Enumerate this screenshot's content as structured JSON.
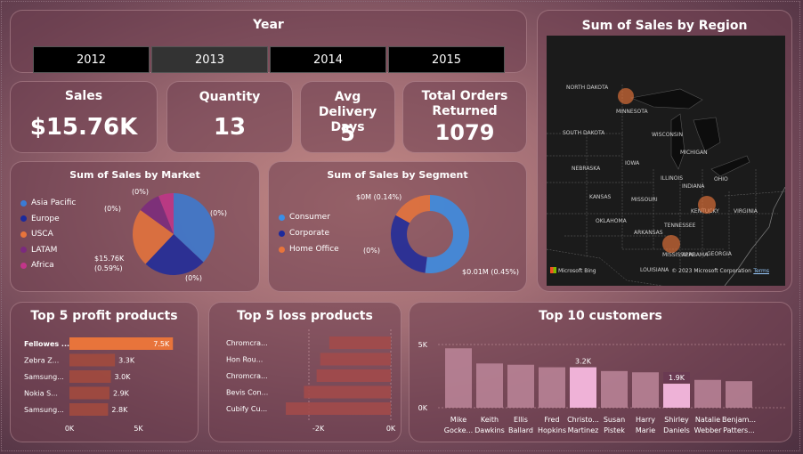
{
  "year_slicer": {
    "title": "Year",
    "options": [
      "2012",
      "2013",
      "2014",
      "2015"
    ],
    "selected": "2013"
  },
  "kpis": {
    "sales": {
      "label": "Sales",
      "value": "$15.76K"
    },
    "quantity": {
      "label": "Quantity",
      "value": "13"
    },
    "avg_delivery": {
      "label": "Avg Delivery Days",
      "value": "5"
    },
    "orders_returned": {
      "label": "Total Orders Returned",
      "value": "1079"
    }
  },
  "region_map": {
    "title": "Sum of Sales by Region",
    "states": [
      "NORTH DAKOTA",
      "MINNESOTA",
      "SOUTH DAKOTA",
      "WISCONSIN",
      "MICHIGAN",
      "NEBRASKA",
      "IOWA",
      "ILLINOIS",
      "INDIANA",
      "OHIO",
      "KANSAS",
      "MISSOURI",
      "KENTUCKY",
      "VIRGINIA",
      "OKLAHOMA",
      "ARKANSAS",
      "TENNESSEE",
      "MISSISSIPPI",
      "ALABAMA",
      "GEORGIA",
      "LOUISIANA"
    ],
    "credit_left": "Microsoft Bing",
    "credit_right": "© 2023 Microsoft Corporation",
    "credit_link": "Terms",
    "bubble_color": "#e8743b"
  },
  "market_pie": {
    "title": "Sum of Sales by Market",
    "legend": [
      {
        "name": "Asia Pacific",
        "color": "#3a7bd5"
      },
      {
        "name": "Europe",
        "color": "#1c2a9c"
      },
      {
        "name": "USCA",
        "color": "#e8743b"
      },
      {
        "name": "LATAM",
        "color": "#7b2a7e"
      },
      {
        "name": "Africa",
        "color": "#c2358a"
      }
    ],
    "labels": [
      "(0%)",
      "(0%)",
      "(0%)",
      "$15.76K",
      "(0.59%)",
      "(0%)"
    ]
  },
  "segment_donut": {
    "title": "Sum of Sales by Segment",
    "legend": [
      {
        "name": "Consumer",
        "color": "#3a8fe8"
      },
      {
        "name": "Corporate",
        "color": "#1c2a9c"
      },
      {
        "name": "Home Office",
        "color": "#e8743b"
      }
    ],
    "labels": [
      "$0M (0.14%)",
      "(0%)",
      "$0.01M (0.45%)"
    ]
  },
  "chart_data": [
    {
      "type": "pie",
      "title": "Sum of Sales by Market",
      "categories": [
        "Asia Pacific",
        "Europe",
        "USCA",
        "LATAM",
        "Africa"
      ],
      "values": [
        37,
        25,
        23,
        9,
        6
      ]
    },
    {
      "type": "pie",
      "title": "Sum of Sales by Segment",
      "categories": [
        "Consumer",
        "Corporate",
        "Home Office"
      ],
      "values": [
        52,
        31,
        17
      ]
    },
    {
      "type": "bar",
      "title": "Top 5 profit products",
      "categories": [
        "Fellowes ...",
        "Zebra Z...",
        "Samsung...",
        "Nokia S...",
        "Samsung..."
      ],
      "values": [
        7500,
        3300,
        3000,
        2900,
        2800
      ],
      "value_labels": [
        "7.5K",
        "3.3K",
        "3.0K",
        "2.9K",
        "2.8K"
      ],
      "ticks": [
        "0K",
        "5K"
      ],
      "xlim": [
        0,
        8000
      ]
    },
    {
      "type": "bar",
      "title": "Top 5 loss products",
      "categories": [
        "Chromcra...",
        "Hon Rou...",
        "Chromcra...",
        "Bevis Con...",
        "Cubify Cu..."
      ],
      "values": [
        -1700,
        -1950,
        -2050,
        -2400,
        -2900
      ],
      "ticks": [
        "-2K",
        "0K"
      ],
      "xlim": [
        -3000,
        0
      ]
    },
    {
      "type": "bar",
      "title": "Top 10 customers",
      "categories": [
        "Mike Gocke...",
        "Keith Dawkins",
        "Ellis Ballard",
        "Fred Hopkins",
        "Christo... Martinez",
        "Susan Pistek",
        "Harry Marie",
        "Shirley Daniels",
        "Natalie Webber",
        "Benjam... Patters..."
      ],
      "values": [
        4700,
        3500,
        3400,
        3200,
        3200,
        2900,
        2800,
        1900,
        2200,
        2100
      ],
      "highlighted": [
        4,
        7
      ],
      "highlight_labels": [
        "3.2K",
        "1.9K"
      ],
      "ticks": [
        "0K",
        "5K"
      ],
      "ylim": [
        0,
        5000
      ]
    }
  ],
  "profit_panel": {
    "title": "Top 5 profit products"
  },
  "loss_panel": {
    "title": "Top 5 loss products"
  },
  "customers_panel": {
    "title": "Top 10 customers"
  }
}
